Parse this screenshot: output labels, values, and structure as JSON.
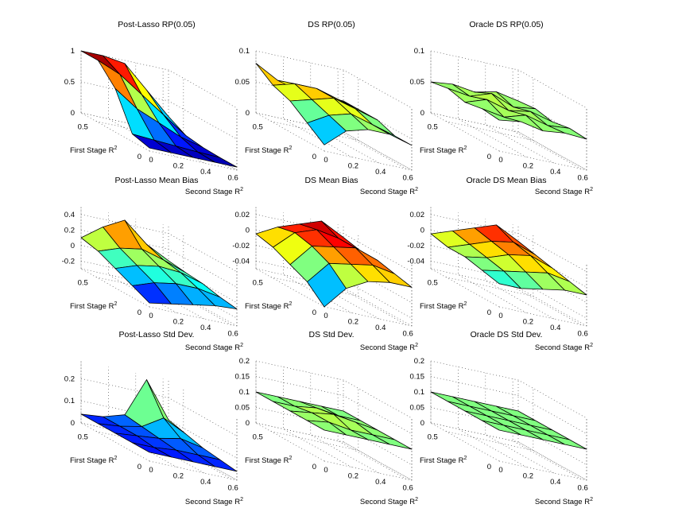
{
  "chart_data": [
    {
      "type": "surface3d",
      "title": "Post-Lasso RP(0.05)",
      "xlabel": "Second Stage R",
      "ylabel": "First Stage R",
      "xticks": [
        "0",
        "0.2",
        "0.4",
        "0.6"
      ],
      "yticks": [
        "0",
        "0.5"
      ],
      "zticks": [
        "0",
        "0.5",
        "1"
      ],
      "zlim": [
        0,
        1
      ],
      "grid": true,
      "x": [
        0,
        0.16,
        0.32,
        0.48,
        0.64
      ],
      "y": [
        0,
        0.16,
        0.32,
        0.48,
        0.64
      ],
      "z": [
        [
          0.05,
          0.05,
          0.05,
          0.05,
          0.05
        ],
        [
          0.12,
          0.1,
          0.08,
          0.06,
          0.05
        ],
        [
          0.7,
          0.45,
          0.3,
          0.15,
          0.06
        ],
        [
          1.0,
          0.85,
          0.6,
          0.35,
          0.1
        ],
        [
          1.0,
          1.0,
          0.95,
          0.6,
          0.25
        ]
      ]
    },
    {
      "type": "surface3d",
      "title": "DS RP(0.05)",
      "xlabel": "Second Stage R",
      "ylabel": "First Stage R",
      "xticks": [
        "0",
        "0.2",
        "0.4",
        "0.6"
      ],
      "yticks": [
        "0",
        "0.5"
      ],
      "zticks": [
        "0",
        "0.05",
        "0.1"
      ],
      "zlim": [
        0,
        0.1
      ],
      "grid": true,
      "x": [
        0,
        0.16,
        0.32,
        0.48,
        0.64
      ],
      "y": [
        0,
        0.16,
        0.32,
        0.48,
        0.64
      ],
      "z": [
        [
          0.01,
          0.04,
          0.05,
          0.05,
          0.04
        ],
        [
          0.03,
          0.05,
          0.06,
          0.05,
          0.04
        ],
        [
          0.05,
          0.06,
          0.07,
          0.06,
          0.05
        ],
        [
          0.06,
          0.07,
          0.07,
          0.06,
          0.05
        ],
        [
          0.08,
          0.06,
          0.05,
          0.05,
          0.05
        ]
      ]
    },
    {
      "type": "surface3d",
      "title": "Oracle DS RP(0.05)",
      "xlabel": "Second Stage R",
      "ylabel": "First Stage R",
      "xticks": [
        "0",
        "0.2",
        "0.4",
        "0.6"
      ],
      "yticks": [
        "0",
        "0.5"
      ],
      "zticks": [
        "0",
        "0.05",
        "0.1"
      ],
      "zlim": [
        0,
        0.1
      ],
      "grid": true,
      "x": [
        0,
        0.16,
        0.32,
        0.48,
        0.64
      ],
      "y": [
        0,
        0.16,
        0.32,
        0.48,
        0.64
      ],
      "z": [
        [
          0.05,
          0.055,
          0.048,
          0.052,
          0.05
        ],
        [
          0.053,
          0.047,
          0.058,
          0.049,
          0.052
        ],
        [
          0.048,
          0.06,
          0.05,
          0.056,
          0.047
        ],
        [
          0.055,
          0.05,
          0.062,
          0.048,
          0.053
        ],
        [
          0.05,
          0.054,
          0.049,
          0.057,
          0.05
        ]
      ]
    },
    {
      "type": "surface3d",
      "title": "Post-Lasso Mean Bias",
      "xlabel": "Second Stage R",
      "ylabel": "First Stage R",
      "xticks": [
        "0",
        "0.2",
        "0.4",
        "0.6"
      ],
      "yticks": [
        "0",
        "0.5"
      ],
      "zticks": [
        "-0.2",
        "0",
        "0.2",
        "0.4"
      ],
      "zlim": [
        -0.3,
        0.5
      ],
      "grid": true,
      "x": [
        0,
        0.16,
        0.32,
        0.48,
        0.64
      ],
      "y": [
        0,
        0.16,
        0.32,
        0.48,
        0.64
      ],
      "z": [
        [
          -0.25,
          -0.2,
          -0.15,
          -0.1,
          -0.08
        ],
        [
          -0.15,
          -0.05,
          0.0,
          0.0,
          -0.05
        ],
        [
          -0.05,
          0.05,
          0.1,
          0.08,
          0.0
        ],
        [
          0.05,
          0.15,
          0.2,
          0.12,
          0.02
        ],
        [
          0.1,
          0.3,
          0.45,
          0.2,
          0.05
        ]
      ]
    },
    {
      "type": "surface3d",
      "title": "DS Mean Bias",
      "xlabel": "Second Stage R",
      "ylabel": "First Stage R",
      "xticks": [
        "0",
        "0.2",
        "0.4",
        "0.6"
      ],
      "yticks": [
        "0",
        "0.5"
      ],
      "zticks": [
        "-0.04",
        "-0.02",
        "0",
        "0.02"
      ],
      "zlim": [
        -0.05,
        0.03
      ],
      "grid": true,
      "x": [
        0,
        0.16,
        0.32,
        0.48,
        0.64
      ],
      "y": [
        0,
        0.16,
        0.32,
        0.48,
        0.64
      ],
      "z": [
        [
          -0.05,
          -0.02,
          -0.005,
          0.0,
          0.0
        ],
        [
          -0.03,
          0.0,
          0.005,
          0.01,
          0.005
        ],
        [
          -0.02,
          0.01,
          0.015,
          0.02,
          0.01
        ],
        [
          -0.01,
          0.015,
          0.025,
          0.02,
          0.01
        ],
        [
          -0.005,
          0.01,
          0.02,
          0.03,
          0.015
        ]
      ]
    },
    {
      "type": "surface3d",
      "title": "Oracle DS Mean Bias",
      "xlabel": "Second Stage R",
      "ylabel": "First Stage R",
      "xticks": [
        "0",
        "0.2",
        "0.4",
        "0.6"
      ],
      "yticks": [
        "0",
        "0.5"
      ],
      "zticks": [
        "-0.04",
        "-0.02",
        "0",
        "0.02"
      ],
      "zlim": [
        -0.05,
        0.03
      ],
      "grid": true,
      "x": [
        0,
        0.16,
        0.32,
        0.48,
        0.64
      ],
      "y": [
        0,
        0.16,
        0.32,
        0.48,
        0.64
      ],
      "z": [
        [
          -0.02,
          -0.02,
          -0.015,
          -0.01,
          -0.01
        ],
        [
          -0.015,
          -0.01,
          -0.005,
          0.0,
          -0.005
        ],
        [
          -0.01,
          -0.005,
          0.005,
          0.01,
          0.0
        ],
        [
          -0.01,
          0.0,
          0.01,
          0.015,
          0.005
        ],
        [
          -0.005,
          0.005,
          0.015,
          0.025,
          0.01
        ]
      ]
    },
    {
      "type": "surface3d",
      "title": "Post-Lasso Std Dev.",
      "xlabel": "Second Stage R",
      "ylabel": "First Stage R",
      "xticks": [
        "0",
        "0.2",
        "0.4",
        "0.6"
      ],
      "yticks": [
        "0",
        "0.5"
      ],
      "zticks": [
        "0",
        "0.1",
        "0.2"
      ],
      "zlim": [
        0,
        0.28
      ],
      "grid": true,
      "x": [
        0,
        0.16,
        0.32,
        0.48,
        0.64
      ],
      "y": [
        0,
        0.16,
        0.32,
        0.48,
        0.64
      ],
      "z": [
        [
          0.04,
          0.04,
          0.04,
          0.04,
          0.04
        ],
        [
          0.04,
          0.04,
          0.05,
          0.05,
          0.05
        ],
        [
          0.04,
          0.05,
          0.06,
          0.08,
          0.06
        ],
        [
          0.04,
          0.05,
          0.07,
          0.13,
          0.08
        ],
        [
          0.04,
          0.05,
          0.08,
          0.26,
          0.1
        ]
      ]
    },
    {
      "type": "surface3d",
      "title": "DS Std Dev.",
      "xlabel": "Second Stage R",
      "ylabel": "First Stage R",
      "xticks": [
        "0",
        "0.2",
        "0.4",
        "0.6"
      ],
      "yticks": [
        "0",
        "0.5"
      ],
      "zticks": [
        "0",
        "0.05",
        "0.1",
        "0.15",
        "0.2"
      ],
      "zlim": [
        0,
        0.2
      ],
      "grid": true,
      "x": [
        0,
        0.16,
        0.32,
        0.48,
        0.64
      ],
      "y": [
        0,
        0.16,
        0.32,
        0.48,
        0.64
      ],
      "z": [
        [
          0.1,
          0.1,
          0.1,
          0.1,
          0.1
        ],
        [
          0.1,
          0.11,
          0.1,
          0.1,
          0.1
        ],
        [
          0.1,
          0.11,
          0.12,
          0.11,
          0.1
        ],
        [
          0.1,
          0.1,
          0.11,
          0.1,
          0.1
        ],
        [
          0.1,
          0.1,
          0.1,
          0.1,
          0.1
        ]
      ]
    },
    {
      "type": "surface3d",
      "title": "Oracle DS Std Dev.",
      "xlabel": "Second Stage R",
      "ylabel": "First Stage R",
      "xticks": [
        "0",
        "0.2",
        "0.4",
        "0.6"
      ],
      "yticks": [
        "0",
        "0.5"
      ],
      "zticks": [
        "0",
        "0.05",
        "0.1",
        "0.15",
        "0.2"
      ],
      "zlim": [
        0,
        0.2
      ],
      "grid": true,
      "x": [
        0,
        0.16,
        0.32,
        0.48,
        0.64
      ],
      "y": [
        0,
        0.16,
        0.32,
        0.48,
        0.64
      ],
      "z": [
        [
          0.1,
          0.1,
          0.1,
          0.1,
          0.1
        ],
        [
          0.1,
          0.1,
          0.1,
          0.1,
          0.1
        ],
        [
          0.1,
          0.1,
          0.1,
          0.1,
          0.1
        ],
        [
          0.1,
          0.1,
          0.1,
          0.1,
          0.1
        ],
        [
          0.1,
          0.1,
          0.1,
          0.1,
          0.1
        ]
      ]
    }
  ]
}
